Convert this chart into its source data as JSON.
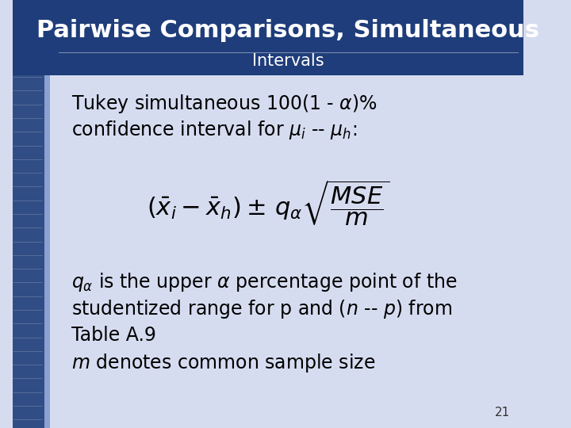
{
  "title_line1": "Pairwise Comparisons, Simultaneous",
  "title_line2": "Intervals",
  "title_bg_color": "#1F3D7A",
  "title_text_color": "#FFFFFF",
  "slide_bg_color": "#D6DCF0",
  "left_stripe_color": "#1F3D7A",
  "body_text_color": "#000000",
  "page_number": "21",
  "line1": "Tukey simultaneous 100(1 - $\\alpha$)%",
  "line2": "confidence interval for $\\mu_i$ -- $\\mu_h$:",
  "body1": "$q_{\\alpha}$ is the upper $\\alpha$ percentage point of the",
  "body2": "studentized range for p and ($n$ -- $p$) from",
  "body3": "Table A.9",
  "body4": "$m$ denotes common sample size",
  "formula": "$\\left(\\bar{x}_i - \\bar{x}_h\\right) \\pm\\, q_{\\alpha}\\sqrt{\\dfrac{MSE}{m}}$"
}
